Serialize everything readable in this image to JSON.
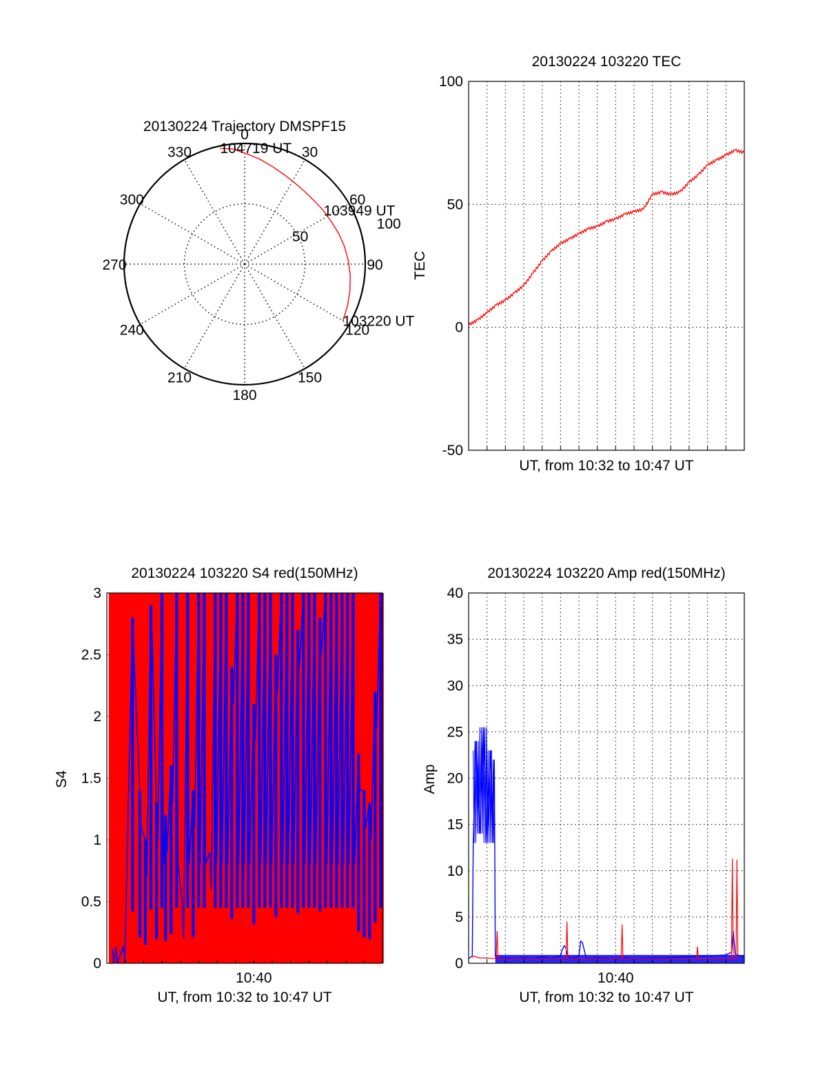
{
  "colors": {
    "series_red": "#ff0000",
    "series_blue": "#0000ff",
    "axis": "#000000",
    "grid": "#000000",
    "background": "#ffffff"
  },
  "chart_data": [
    {
      "id": "trajectory",
      "type": "polar",
      "title": "20130224 Trajectory DMSPF15",
      "angle_labels": [
        "0",
        "30",
        "60",
        "90",
        "120",
        "150",
        "180",
        "210",
        "240",
        "270",
        "300",
        "330"
      ],
      "angle_zero": "top",
      "angle_direction": "clockwise",
      "radial_ticks": [
        50,
        100
      ],
      "radial_tick_labels": [
        "50",
        "100"
      ],
      "r_max": 100,
      "grid": true,
      "series": [
        {
          "color": "red",
          "points": [
            {
              "az": 120,
              "r": 94
            },
            {
              "az": 112,
              "r": 92
            },
            {
              "az": 104,
              "r": 90
            },
            {
              "az": 96,
              "r": 88
            },
            {
              "az": 88,
              "r": 86
            },
            {
              "az": 80,
              "r": 84
            },
            {
              "az": 72,
              "r": 82
            },
            {
              "az": 64,
              "r": 80
            },
            {
              "az": 56,
              "r": 79
            },
            {
              "az": 48,
              "r": 78
            },
            {
              "az": 40,
              "r": 78
            },
            {
              "az": 32,
              "r": 79
            },
            {
              "az": 24,
              "r": 81
            },
            {
              "az": 16,
              "r": 84
            },
            {
              "az": 8,
              "r": 88
            },
            {
              "az": 0,
              "r": 92
            },
            {
              "az": -6,
              "r": 96
            },
            {
              "az": -12,
              "r": 98
            }
          ]
        }
      ],
      "annotations": [
        {
          "text": "104719 UT",
          "az": -12,
          "r": 98
        },
        {
          "text": "103949 UT",
          "az": 56,
          "r": 79
        },
        {
          "text": "103220 UT",
          "az": 120,
          "r": 94
        }
      ],
      "ylabel": "TEC"
    },
    {
      "id": "tec",
      "type": "line",
      "title": "20130224 103220 TEC",
      "xlabel": "UT, from 10:32 to 10:47 UT",
      "ylabel": "TEC",
      "xlim": [
        0,
        15
      ],
      "ylim": [
        -50,
        100
      ],
      "yticks": [
        -50,
        0,
        50,
        100
      ],
      "x_gridlines": 15,
      "grid": true,
      "series": [
        {
          "color": "red",
          "x": [
            0,
            0.5,
            1,
            1.5,
            2,
            2.5,
            3,
            3.5,
            4,
            4.5,
            5,
            5.5,
            6,
            6.5,
            7,
            7.5,
            8,
            8.5,
            9,
            9.5,
            10,
            10.5,
            11,
            11.5,
            12,
            12.5,
            13,
            13.5,
            14,
            14.5,
            15
          ],
          "y": [
            1,
            3,
            6,
            9,
            11,
            14,
            17,
            22,
            27,
            31,
            34,
            36,
            38,
            40,
            41,
            43,
            44,
            46,
            47,
            48,
            54,
            55,
            54,
            55,
            59,
            62,
            66,
            68,
            70,
            72,
            71
          ]
        }
      ]
    },
    {
      "id": "s4",
      "type": "line",
      "title": "20130224 103220 S4 red(150MHz)",
      "xlabel": "UT, from 10:32 to 10:47 UT",
      "ylabel": "S4",
      "xlim": [
        0,
        15
      ],
      "ylim": [
        0,
        3
      ],
      "yticks": [
        0,
        0.5,
        1,
        1.5,
        2,
        2.5,
        3
      ],
      "ytick_labels": [
        "0",
        "0.5",
        "1",
        "1.5",
        "2",
        "2.5",
        "3"
      ],
      "xticks": [
        8
      ],
      "xtick_labels": [
        "10:40"
      ],
      "x_gridlines": 15,
      "grid": true,
      "series": [
        {
          "color": "red",
          "style": "dense-oscillation",
          "x": [
            0.2,
            0.35,
            0.5,
            0.65,
            0.8,
            1.05,
            1.2,
            1.35,
            1.55,
            1.7,
            1.9,
            2.05,
            2.25,
            2.4,
            2.6,
            2.8,
            3.0,
            3.15,
            3.35,
            3.55,
            3.7,
            3.9,
            4.1,
            4.3,
            4.45,
            4.65,
            4.85,
            5.0,
            5.2,
            5.4,
            5.55,
            5.75,
            5.9,
            6.1,
            6.3,
            6.5,
            6.7,
            6.85,
            7.05,
            7.25,
            7.4,
            7.6,
            7.8,
            7.95,
            8.15,
            8.35,
            8.55,
            8.7,
            8.9,
            9.1,
            9.3,
            9.45,
            9.65,
            9.85,
            10.05,
            10.2,
            10.4,
            10.6,
            10.8,
            10.95,
            11.15,
            11.35,
            11.55,
            11.7,
            11.9,
            12.1,
            12.3,
            12.45,
            12.65,
            12.85,
            13.05,
            13.2,
            13.4,
            13.6,
            13.8,
            13.95,
            14.15,
            14.35,
            14.55,
            14.75,
            14.9
          ],
          "y": [
            3,
            3,
            3,
            3,
            3,
            3,
            3,
            3,
            3,
            3,
            3,
            3,
            3,
            3,
            3,
            3,
            3,
            3,
            3,
            3,
            3,
            3,
            3,
            3,
            3,
            3,
            3,
            3,
            3,
            3,
            3,
            3,
            3,
            3,
            3,
            3,
            3,
            3,
            3,
            3,
            3,
            3,
            3,
            3,
            3,
            3,
            3,
            3,
            3,
            3,
            3,
            3,
            3,
            3,
            3,
            3,
            3,
            3,
            3,
            3,
            3,
            3,
            3,
            3,
            3,
            3,
            3,
            3,
            3,
            3,
            3,
            3,
            3,
            3,
            3,
            3,
            3,
            3,
            3,
            3,
            3
          ]
        },
        {
          "color": "blue",
          "style": "dense-oscillation",
          "x": [
            0.3,
            0.5,
            0.9,
            1.4,
            1.8,
            2.1,
            2.4,
            2.7,
            3.0,
            3.2,
            3.5,
            3.8,
            4.1,
            4.4,
            4.7,
            5.0,
            5.3,
            5.6,
            5.9,
            6.2,
            6.5,
            6.8,
            7.1,
            7.4,
            7.7,
            8.0,
            8.3,
            8.6,
            8.9,
            9.2,
            9.5,
            9.8,
            10.1,
            10.4,
            10.7,
            11.0,
            11.3,
            11.6,
            11.9,
            12.2,
            12.5,
            12.8,
            13.1,
            13.4,
            13.7,
            14.0,
            14.3,
            14.6,
            14.9
          ],
          "y": [
            0.12,
            0.13,
            0.14,
            2.8,
            1.4,
            1.0,
            2.9,
            1.3,
            3,
            1.2,
            1.6,
            3,
            0.5,
            3,
            1.4,
            3,
            3,
            0.9,
            3,
            3,
            3,
            2.4,
            3,
            3,
            3,
            2.1,
            3,
            3,
            3,
            2.5,
            3,
            3,
            3,
            2.7,
            3,
            3,
            3,
            2.8,
            3,
            3,
            3,
            3,
            3,
            3,
            1.7,
            1.4,
            1.3,
            2.2,
            3
          ]
        }
      ]
    },
    {
      "id": "amp",
      "type": "line",
      "title": "20130224 103220 Amp red(150MHz)",
      "xlabel": "UT, from 10:32 to 10:47 UT",
      "ylabel": "Amp",
      "xlim": [
        0,
        15
      ],
      "ylim": [
        0,
        40
      ],
      "yticks": [
        0,
        5,
        10,
        15,
        20,
        25,
        30,
        35,
        40
      ],
      "xticks": [
        8
      ],
      "xtick_labels": [
        "10:40"
      ],
      "x_gridlines": 15,
      "grid": true,
      "series": [
        {
          "color": "red",
          "x": [
            0.2,
            0.3,
            0.5,
            1.5,
            1.55,
            1.6,
            5.3,
            5.35,
            5.4,
            8.3,
            8.35,
            8.4,
            12.4,
            12.45,
            12.5,
            14.3,
            14.35,
            14.4,
            14.55,
            14.6,
            14.65
          ],
          "y": [
            0.6,
            0.8,
            0.6,
            0.5,
            3.5,
            0.5,
            0.5,
            4.5,
            0.5,
            0.5,
            4.2,
            0.5,
            0.5,
            1.8,
            0.5,
            0.5,
            11.3,
            0.5,
            0.5,
            11.2,
            0.5
          ]
        },
        {
          "color": "blue",
          "x": [
            0,
            0.2,
            0.25,
            0.4,
            0.6,
            0.8,
            1.0,
            1.2,
            1.3,
            1.4,
            1.45,
            1.5,
            2.0,
            2.5,
            3.0,
            3.5,
            4.0,
            4.5,
            5.0,
            5.1,
            5.2,
            5.3,
            5.4,
            5.6,
            6.0,
            6.1,
            6.2,
            6.4,
            7.0,
            8.0,
            8.5,
            9.0,
            10.0,
            11.0,
            12.0,
            13.0,
            14.0,
            14.3,
            14.4,
            14.5,
            14.6,
            14.8,
            15
          ],
          "y": [
            0.5,
            0.8,
            13,
            24,
            14,
            25.5,
            13,
            23,
            13,
            22,
            0.8,
            0.5,
            0.6,
            0.5,
            0.6,
            0.5,
            0.7,
            0.5,
            0.8,
            1.5,
            1.9,
            1.6,
            0.7,
            0.5,
            0.8,
            2.4,
            2.2,
            0.5,
            0.6,
            0.5,
            0.6,
            0.5,
            0.6,
            0.6,
            0.7,
            0.8,
            0.9,
            1.2,
            3.5,
            1.0,
            0.9,
            0.8,
            0.7
          ]
        }
      ]
    }
  ]
}
